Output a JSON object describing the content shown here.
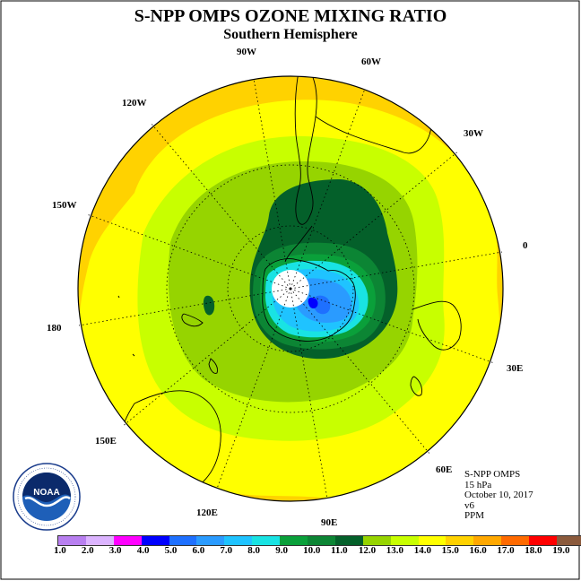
{
  "title": "S-NPP OMPS OZONE MIXING RATIO",
  "subtitle": "Southern Hemisphere",
  "map": {
    "projection": "south polar stereographic",
    "longitude_labels": [
      "90W",
      "60W",
      "30W",
      "0",
      "30E",
      "60E",
      "90E",
      "120E",
      "150E",
      "180",
      "150W",
      "120W"
    ],
    "contour_levels_ppm": [
      1.0,
      2.0,
      3.0,
      4.0,
      5.0,
      6.0,
      7.0,
      8.0,
      9.0,
      10.0,
      11.0,
      12.0,
      13.0,
      14.0,
      15.0,
      16.0,
      17.0,
      18.0,
      19.0
    ],
    "missing_data_region": "polar night (white disk at pole)"
  },
  "info": {
    "instrument": "S-NPP OMPS",
    "level": "15 hPa",
    "date": "October 10, 2017",
    "version": "v6",
    "units": "PPM"
  },
  "colorbar": {
    "colors": [
      "#b87ff0",
      "#dcb4ff",
      "#ff00ff",
      "#0000ff",
      "#1e70ff",
      "#2a9bff",
      "#1fc3ff",
      "#19e3e3",
      "#0aa03a",
      "#0c8534",
      "#04602a",
      "#96d400",
      "#c8ff00",
      "#ffff00",
      "#ffd200",
      "#ffa800",
      "#ff6a00",
      "#ff0000",
      "#8b5a3c"
    ],
    "labels": [
      "1.0",
      "2.0",
      "3.0",
      "4.0",
      "5.0",
      "6.0",
      "7.0",
      "8.0",
      "9.0",
      "10.0",
      "11.0",
      "12.0",
      "13.0",
      "14.0",
      "15.0",
      "16.0",
      "17.0",
      "18.0",
      "19.0"
    ]
  },
  "logo": {
    "text": "NOAA",
    "ring_text": "NATIONAL OCEANIC AND ATMOSPHERIC ADMINISTRATION · U.S. DEPARTMENT OF COMMERCE"
  }
}
